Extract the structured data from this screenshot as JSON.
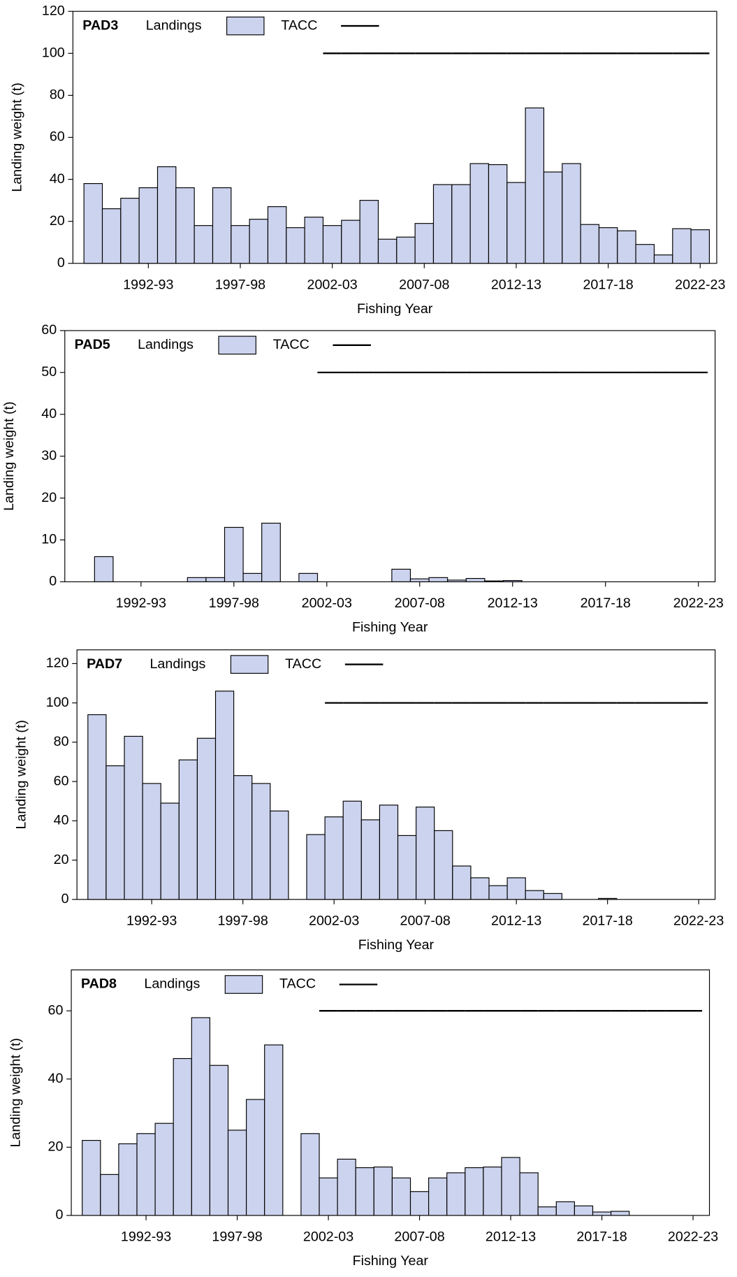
{
  "chart_data": [
    {
      "type": "bar",
      "title": "PAD3",
      "x_label": "Fishing Year",
      "y_label": "Landing weight (t)",
      "categories": [
        null,
        null,
        null,
        "1992-93",
        null,
        null,
        null,
        null,
        "1997-98",
        null,
        null,
        null,
        null,
        "2002-03",
        null,
        null,
        null,
        null,
        "2007-08",
        null,
        null,
        null,
        null,
        "2012-13",
        null,
        null,
        null,
        null,
        "2017-18",
        null,
        null,
        null,
        null,
        "2022-23"
      ],
      "series": [
        {
          "name": "Landings",
          "type": "bar",
          "color": "#ccd3ee",
          "values": [
            38,
            26,
            31,
            36,
            46,
            36,
            18,
            36,
            18,
            21,
            27,
            17,
            22,
            18,
            20.5,
            30,
            11.5,
            12.5,
            19,
            37.5,
            37.5,
            47.5,
            47,
            38.5,
            74,
            43.5,
            47.5,
            18.5,
            17,
            15.5,
            9,
            4,
            16.5,
            16
          ]
        },
        {
          "name": "TACC",
          "type": "line",
          "color": "#000000",
          "values": [
            null,
            null,
            null,
            null,
            null,
            null,
            null,
            null,
            null,
            null,
            null,
            null,
            null,
            100,
            100,
            100,
            100,
            100,
            100,
            100,
            100,
            100,
            100,
            100,
            100,
            100,
            100,
            100,
            100,
            100,
            100,
            100,
            100,
            100
          ]
        }
      ],
      "ylim": [
        0,
        120
      ],
      "yticks": [
        0,
        20,
        40,
        60,
        80,
        100,
        120
      ]
    },
    {
      "type": "bar",
      "title": "PAD5",
      "x_label": "Fishing Year",
      "y_label": "Landing weight (t)",
      "categories": [
        null,
        null,
        null,
        "1992-93",
        null,
        null,
        null,
        null,
        "1997-98",
        null,
        null,
        null,
        null,
        "2002-03",
        null,
        null,
        null,
        null,
        "2007-08",
        null,
        null,
        null,
        null,
        "2012-13",
        null,
        null,
        null,
        null,
        "2017-18",
        null,
        null,
        null,
        null,
        "2022-23"
      ],
      "series": [
        {
          "name": "Landings",
          "type": "bar",
          "color": "#ccd3ee",
          "values": [
            0,
            6,
            0,
            0,
            0,
            0,
            1,
            1,
            13,
            2,
            14,
            0,
            2,
            0,
            0,
            0,
            0,
            3,
            0.7,
            1,
            0.4,
            0.8,
            0.2,
            0.3,
            0,
            0,
            0,
            0,
            0,
            0,
            0,
            0,
            0,
            0
          ]
        },
        {
          "name": "TACC",
          "type": "line",
          "color": "#000000",
          "values": [
            null,
            null,
            null,
            null,
            null,
            null,
            null,
            null,
            null,
            null,
            null,
            null,
            null,
            50,
            50,
            50,
            50,
            50,
            50,
            50,
            50,
            50,
            50,
            50,
            50,
            50,
            50,
            50,
            50,
            50,
            50,
            50,
            50,
            50
          ]
        }
      ],
      "ylim": [
        0,
        60
      ],
      "yticks": [
        0,
        10,
        20,
        30,
        40,
        50,
        60
      ]
    },
    {
      "type": "bar",
      "title": "PAD7",
      "x_label": "Fishing Year",
      "y_label": "Landing weight (t)",
      "categories": [
        null,
        null,
        null,
        "1992-93",
        null,
        null,
        null,
        null,
        "1997-98",
        null,
        null,
        null,
        null,
        "2002-03",
        null,
        null,
        null,
        null,
        "2007-08",
        null,
        null,
        null,
        null,
        "2012-13",
        null,
        null,
        null,
        null,
        "2017-18",
        null,
        null,
        null,
        null,
        "2022-23"
      ],
      "series": [
        {
          "name": "Landings",
          "type": "bar",
          "color": "#ccd3ee",
          "values": [
            94,
            68,
            83,
            59,
            49,
            71,
            82,
            106,
            63,
            59,
            45,
            0,
            33,
            42,
            50,
            40.5,
            48,
            32.5,
            47,
            35,
            17,
            11,
            7,
            11,
            4.5,
            3,
            0,
            0,
            0.5,
            0,
            0,
            0,
            0,
            0
          ]
        },
        {
          "name": "TACC",
          "type": "line",
          "color": "#000000",
          "values": [
            null,
            null,
            null,
            null,
            null,
            null,
            null,
            null,
            null,
            null,
            null,
            null,
            null,
            100,
            100,
            100,
            100,
            100,
            100,
            100,
            100,
            100,
            100,
            100,
            100,
            100,
            100,
            100,
            100,
            100,
            100,
            100,
            100,
            100
          ]
        }
      ],
      "ylim": [
        0,
        127
      ],
      "yticks": [
        0,
        20,
        40,
        60,
        80,
        100,
        120
      ]
    },
    {
      "type": "bar",
      "title": "PAD8",
      "x_label": "Fishing Year",
      "y_label": "Landing weight (t)",
      "categories": [
        null,
        null,
        null,
        "1992-93",
        null,
        null,
        null,
        null,
        "1997-98",
        null,
        null,
        null,
        null,
        "2002-03",
        null,
        null,
        null,
        null,
        "2007-08",
        null,
        null,
        null,
        null,
        "2012-13",
        null,
        null,
        null,
        null,
        "2017-18",
        null,
        null,
        null,
        null,
        "2022-23"
      ],
      "series": [
        {
          "name": "Landings",
          "type": "bar",
          "color": "#ccd3ee",
          "values": [
            22,
            12,
            21,
            24,
            27,
            46,
            58,
            44,
            25,
            34,
            50,
            0,
            24,
            11,
            16.5,
            14,
            14.2,
            11,
            7,
            11,
            12.5,
            14,
            14.2,
            17,
            12.5,
            2.5,
            4,
            2.8,
            1,
            1.2,
            0,
            0,
            0,
            0
          ]
        },
        {
          "name": "TACC",
          "type": "line",
          "color": "#000000",
          "values": [
            null,
            null,
            null,
            null,
            null,
            null,
            null,
            null,
            null,
            null,
            null,
            null,
            null,
            60,
            60,
            60,
            60,
            60,
            60,
            60,
            60,
            60,
            60,
            60,
            60,
            60,
            60,
            60,
            60,
            60,
            60,
            60,
            60,
            60
          ]
        }
      ],
      "ylim": [
        0,
        72
      ],
      "yticks": [
        0,
        20,
        40,
        60
      ]
    }
  ]
}
